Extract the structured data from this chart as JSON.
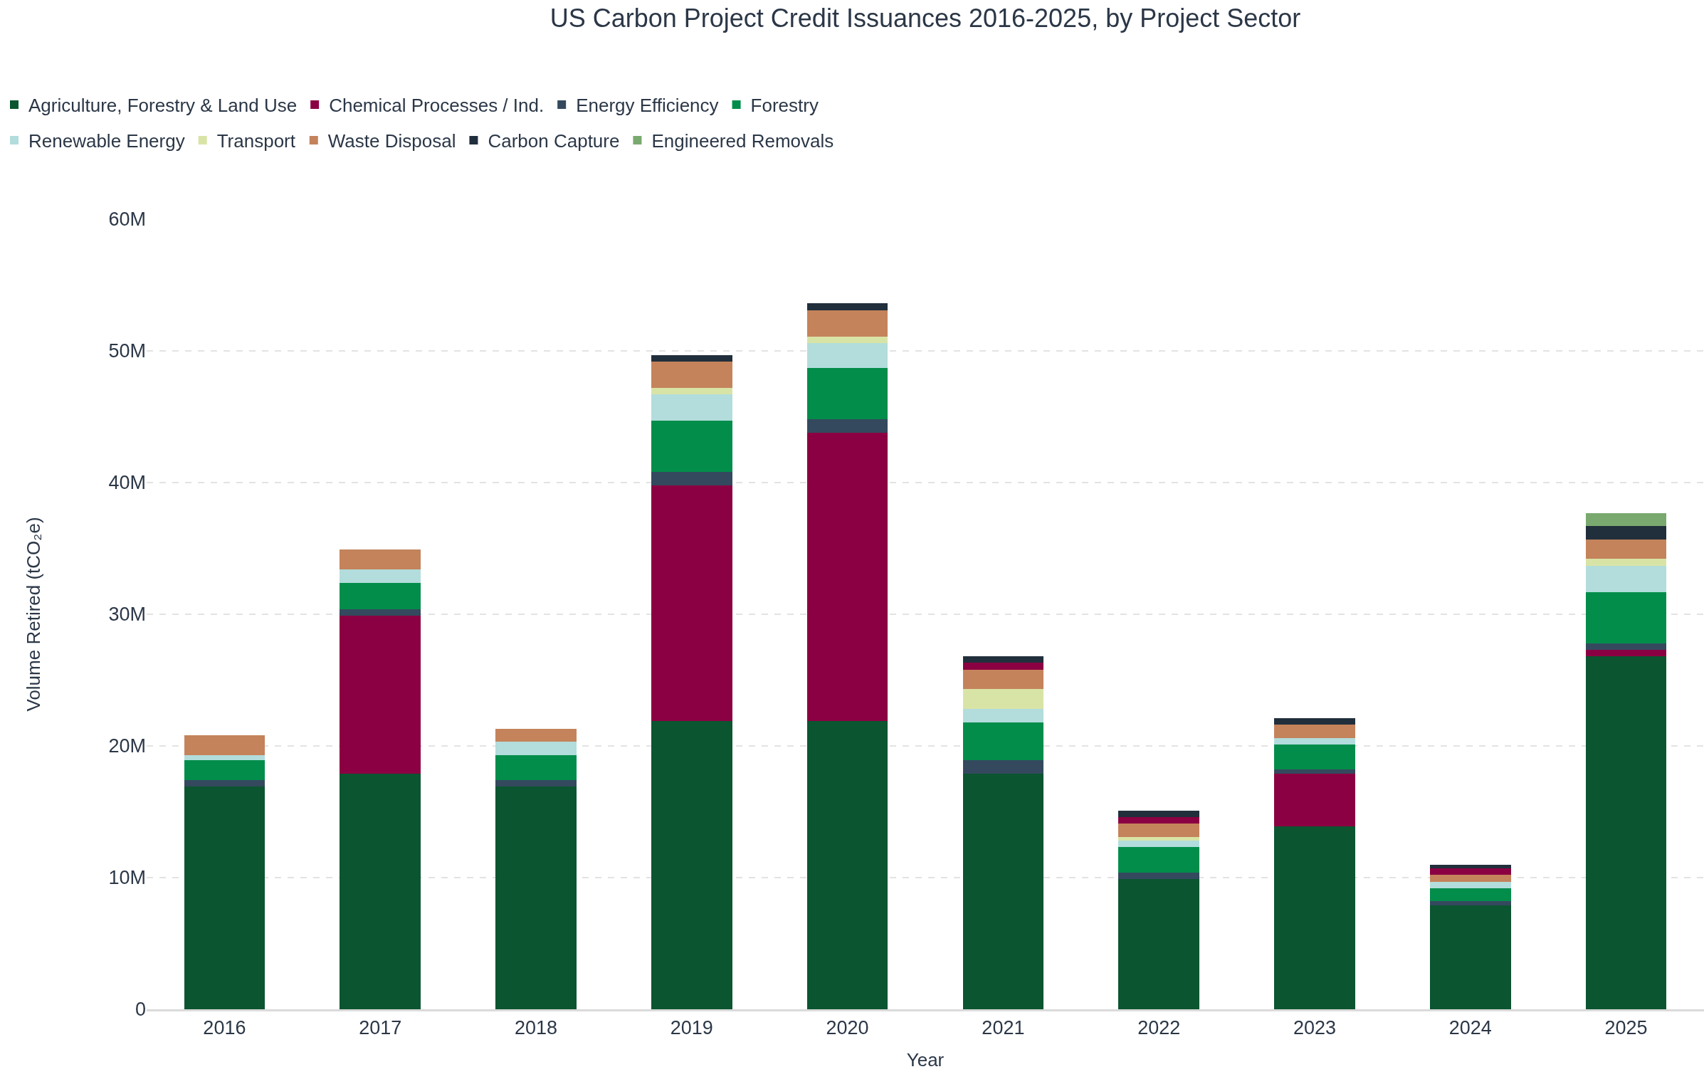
{
  "chart_data": {
    "type": "bar",
    "title": "US Carbon Project Credit Issuances 2016-2025, by Project Sector",
    "xlabel": "Year",
    "ylabel": "Volume Retired (tCO₂e)",
    "categories": [
      "2016",
      "2017",
      "2018",
      "2019",
      "2020",
      "2021",
      "2022",
      "2023",
      "2024",
      "2025"
    ],
    "stacked": true,
    "grid": "y",
    "legend": "top left",
    "ylim": [
      0,
      60000000
    ],
    "yticks": [
      0,
      {
        "value": 10000000,
        "label": "10M"
      },
      {
        "value": 20000000,
        "label": "20M"
      },
      {
        "value": 30000000,
        "label": "30M"
      },
      {
        "value": 40000000,
        "label": "40M"
      },
      {
        "value": 50000000,
        "label": "50M"
      },
      {
        "value": 60000000,
        "label": "60M"
      }
    ],
    "series": [
      {
        "name": "Agriculture, Forestry & Land Use",
        "color": "#0b5530",
        "values": [
          16900000,
          17900000,
          16900000,
          21900000,
          21900000,
          17900000,
          9900000,
          13900000,
          7900000,
          26800000
        ]
      },
      {
        "name": "Chemical Processes / Ind.",
        "color": "#8b0042",
        "values": [
          null,
          12000000,
          null,
          17900000,
          21900000,
          null,
          null,
          4000000,
          null,
          500000
        ]
      },
      {
        "name": "Energy Efficiency",
        "color": "#34495e",
        "values": [
          500000,
          500000,
          500000,
          1000000,
          1000000,
          1000000,
          500000,
          300000,
          300000,
          500000
        ]
      },
      {
        "name": "Forestry",
        "color": "#038d4b",
        "values": [
          1500000,
          2000000,
          1900000,
          3900000,
          3900000,
          2900000,
          1900000,
          1900000,
          1000000,
          3900000
        ]
      },
      {
        "name": "Renewable Energy",
        "color": "#b2dddc",
        "values": [
          400000,
          1000000,
          1000000,
          2000000,
          1900000,
          1000000,
          500000,
          500000,
          500000,
          2000000
        ]
      },
      {
        "name": "Transport",
        "color": "#d8e4a6",
        "values": [
          null,
          null,
          null,
          500000,
          500000,
          1500000,
          300000,
          null,
          null,
          500000
        ]
      },
      {
        "name": "Waste Disposal",
        "color": "#c4835b",
        "values": [
          1500000,
          1500000,
          1000000,
          2000000,
          2000000,
          1500000,
          1000000,
          1000000,
          500000,
          1500000
        ]
      },
      {
        "color": "#8b0042",
        "values": [
          null,
          null,
          null,
          null,
          null,
          500000,
          500000,
          null,
          500000,
          null
        ]
      },
      {
        "name": "Carbon Capture",
        "color": "#212f3c",
        "values": [
          null,
          null,
          null,
          500000,
          500000,
          500000,
          500000,
          500000,
          300000,
          1000000
        ]
      },
      {
        "name": "Engineered Removals",
        "color": "#79a96e",
        "values": [
          null,
          null,
          null,
          null,
          null,
          null,
          null,
          null,
          null,
          1000000
        ]
      }
    ]
  }
}
